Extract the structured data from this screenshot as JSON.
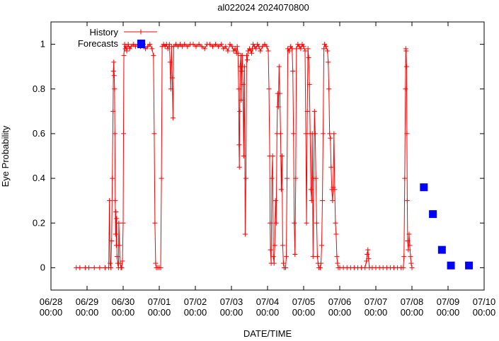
{
  "chart_data": {
    "type": "line",
    "title": "al022024 2024070800",
    "xlabel": "DATE/TIME",
    "ylabel": "Eye Probability",
    "xlim": [
      "06/28 00:00",
      "07/10 00:00"
    ],
    "ylim": [
      -0.1,
      1.1
    ],
    "grid": false,
    "legend_position": "top-left",
    "x_ticks": [
      {
        "line1": "06/28",
        "line2": "00:00",
        "day": 0
      },
      {
        "line1": "06/29",
        "line2": "00:00",
        "day": 1
      },
      {
        "line1": "06/30",
        "line2": "00:00",
        "day": 2
      },
      {
        "line1": "07/01",
        "line2": "00:00",
        "day": 3
      },
      {
        "line1": "07/02",
        "line2": "00:00",
        "day": 4
      },
      {
        "line1": "07/03",
        "line2": "00:00",
        "day": 5
      },
      {
        "line1": "07/04",
        "line2": "00:00",
        "day": 6
      },
      {
        "line1": "07/05",
        "line2": "00:00",
        "day": 7
      },
      {
        "line1": "07/06",
        "line2": "00:00",
        "day": 8
      },
      {
        "line1": "07/07",
        "line2": "00:00",
        "day": 9
      },
      {
        "line1": "07/08",
        "line2": "00:00",
        "day": 10
      },
      {
        "line1": "07/09",
        "line2": "00:00",
        "day": 11
      },
      {
        "line1": "07/10",
        "line2": "00:00",
        "day": 12
      }
    ],
    "y_ticks": [
      {
        "label": "0",
        "value": 0
      },
      {
        "label": "0.2",
        "value": 0.2
      },
      {
        "label": "0.4",
        "value": 0.4
      },
      {
        "label": "0.6",
        "value": 0.6
      },
      {
        "label": "0.8",
        "value": 0.8
      },
      {
        "label": "1",
        "value": 1
      }
    ],
    "series": [
      {
        "name": "History",
        "color": "#ff0000",
        "style": "line-plus",
        "points": [
          [
            0.7,
            0.0
          ],
          [
            0.8,
            0.0
          ],
          [
            0.95,
            0.0
          ],
          [
            1.05,
            0.0
          ],
          [
            1.2,
            0.0
          ],
          [
            1.35,
            0.0
          ],
          [
            1.5,
            0.0
          ],
          [
            1.6,
            0.0
          ],
          [
            1.62,
            0.3
          ],
          [
            1.64,
            0.02
          ],
          [
            1.66,
            0.0
          ],
          [
            1.68,
            0.12
          ],
          [
            1.7,
            0.4
          ],
          [
            1.72,
            0.7
          ],
          [
            1.73,
            0.88
          ],
          [
            1.74,
            0.92
          ],
          [
            1.75,
            0.86
          ],
          [
            1.76,
            0.8
          ],
          [
            1.77,
            0.6
          ],
          [
            1.78,
            0.3
          ],
          [
            1.79,
            0.15
          ],
          [
            1.8,
            0.25
          ],
          [
            1.81,
            0.1
          ],
          [
            1.82,
            0.22
          ],
          [
            1.83,
            0.05
          ],
          [
            1.85,
            0.02
          ],
          [
            1.87,
            0.0
          ],
          [
            1.88,
            0.2
          ],
          [
            1.9,
            0.1
          ],
          [
            1.92,
            0.02
          ],
          [
            1.94,
            0.0
          ],
          [
            1.96,
            0.0
          ],
          [
            1.98,
            0.03
          ],
          [
            2.0,
            0.2
          ],
          [
            2.01,
            0.6
          ],
          [
            2.02,
            0.95
          ],
          [
            2.04,
            1.0
          ],
          [
            2.06,
            0.98
          ],
          [
            2.08,
            0.99
          ],
          [
            2.1,
            0.97
          ],
          [
            2.14,
            1.0
          ],
          [
            2.18,
            0.98
          ],
          [
            2.22,
            0.99
          ],
          [
            2.28,
            1.0
          ],
          [
            2.34,
            0.99
          ],
          [
            2.4,
            1.0
          ],
          [
            2.48,
            0.99
          ],
          [
            2.56,
            1.0
          ],
          [
            2.62,
            0.98
          ],
          [
            2.68,
            0.99
          ],
          [
            2.74,
            1.0
          ],
          [
            2.8,
            0.98
          ],
          [
            2.84,
            0.95
          ],
          [
            2.86,
            0.6
          ],
          [
            2.88,
            0.2
          ],
          [
            2.9,
            0.02
          ],
          [
            2.92,
            0.0
          ],
          [
            2.96,
            0.0
          ],
          [
            3.0,
            0.0
          ],
          [
            3.04,
            0.0
          ],
          [
            3.06,
            0.4
          ],
          [
            3.08,
            0.99
          ],
          [
            3.12,
            1.0
          ],
          [
            3.16,
            0.99
          ],
          [
            3.2,
            1.0
          ],
          [
            3.24,
            0.98
          ],
          [
            3.28,
            1.0
          ],
          [
            3.3,
            0.92
          ],
          [
            3.32,
            0.8
          ],
          [
            3.34,
            0.99
          ],
          [
            3.36,
            0.85
          ],
          [
            3.38,
            0.67
          ],
          [
            3.4,
            0.99
          ],
          [
            3.46,
            1.0
          ],
          [
            3.52,
            0.99
          ],
          [
            3.58,
            1.0
          ],
          [
            3.64,
            0.99
          ],
          [
            3.7,
            1.0
          ],
          [
            3.78,
            0.99
          ],
          [
            3.86,
            1.0
          ],
          [
            3.94,
            1.0
          ],
          [
            4.02,
            0.99
          ],
          [
            4.1,
            1.0
          ],
          [
            4.18,
            0.99
          ],
          [
            4.26,
            0.98
          ],
          [
            4.32,
            1.0
          ],
          [
            4.4,
            1.0
          ],
          [
            4.48,
            0.99
          ],
          [
            4.56,
            1.0
          ],
          [
            4.64,
            0.99
          ],
          [
            4.72,
            1.0
          ],
          [
            4.78,
            0.98
          ],
          [
            4.84,
            0.99
          ],
          [
            4.9,
            0.97
          ],
          [
            4.96,
            1.0
          ],
          [
            5.02,
            0.99
          ],
          [
            5.06,
            0.97
          ],
          [
            5.1,
            0.98
          ],
          [
            5.14,
            0.96
          ],
          [
            5.16,
            0.99
          ],
          [
            5.18,
            0.96
          ],
          [
            5.2,
            0.8
          ],
          [
            5.21,
            0.55
          ],
          [
            5.22,
            0.45
          ],
          [
            5.23,
            0.7
          ],
          [
            5.24,
            0.9
          ],
          [
            5.26,
            0.95
          ],
          [
            5.27,
            0.75
          ],
          [
            5.28,
            0.88
          ],
          [
            5.3,
            0.95
          ],
          [
            5.32,
            0.82
          ],
          [
            5.34,
            0.5
          ],
          [
            5.36,
            0.9
          ],
          [
            5.38,
            0.15
          ],
          [
            5.4,
            0.4
          ],
          [
            5.42,
            0.95
          ],
          [
            5.44,
            0.93
          ],
          [
            5.46,
            0.97
          ],
          [
            5.5,
            0.98
          ],
          [
            5.54,
            0.97
          ],
          [
            5.56,
            0.96
          ],
          [
            5.58,
            0.98
          ],
          [
            5.6,
            1.0
          ],
          [
            5.64,
            0.99
          ],
          [
            5.68,
            0.98
          ],
          [
            5.72,
            1.0
          ],
          [
            5.76,
            0.99
          ],
          [
            5.8,
            0.97
          ],
          [
            5.86,
            0.99
          ],
          [
            5.92,
            1.0
          ],
          [
            5.98,
            0.99
          ],
          [
            6.02,
            0.97
          ],
          [
            6.04,
            0.8
          ],
          [
            6.06,
            0.5
          ],
          [
            6.07,
            0.2
          ],
          [
            6.08,
            0.08
          ],
          [
            6.1,
            0.02
          ],
          [
            6.12,
            0.4
          ],
          [
            6.14,
            0.5
          ],
          [
            6.16,
            0.05
          ],
          [
            6.18,
            0.02
          ],
          [
            6.2,
            0.1
          ],
          [
            6.22,
            0.3
          ],
          [
            6.24,
            0.2
          ],
          [
            6.26,
            0.6
          ],
          [
            6.28,
            0.78
          ],
          [
            6.3,
            0.72
          ],
          [
            6.32,
            0.9
          ],
          [
            6.34,
            0.78
          ],
          [
            6.36,
            0.6
          ],
          [
            6.38,
            0.35
          ],
          [
            6.4,
            0.5
          ],
          [
            6.42,
            0.1
          ],
          [
            6.44,
            0.02
          ],
          [
            6.46,
            0.0
          ],
          [
            6.5,
            0.0
          ],
          [
            6.52,
            0.05
          ],
          [
            6.54,
            0.4
          ],
          [
            6.56,
            0.98
          ],
          [
            6.6,
            0.97
          ],
          [
            6.64,
            0.99
          ],
          [
            6.68,
            0.98
          ],
          [
            6.7,
            0.88
          ],
          [
            6.72,
            0.6
          ],
          [
            6.74,
            0.2
          ],
          [
            6.76,
            0.06
          ],
          [
            6.78,
            0.4
          ],
          [
            6.8,
            0.98
          ],
          [
            6.84,
            1.0
          ],
          [
            6.88,
            0.99
          ],
          [
            6.92,
            0.98
          ],
          [
            6.96,
            1.0
          ],
          [
            7.0,
            0.99
          ],
          [
            7.04,
            0.97
          ],
          [
            7.06,
            0.6
          ],
          [
            7.08,
            0.2
          ],
          [
            7.1,
            0.7
          ],
          [
            7.12,
            0.98
          ],
          [
            7.14,
            0.94
          ],
          [
            7.16,
            0.82
          ],
          [
            7.18,
            0.6
          ],
          [
            7.2,
            0.35
          ],
          [
            7.22,
            0.3
          ],
          [
            7.24,
            0.6
          ],
          [
            7.26,
            0.05
          ],
          [
            7.28,
            0.4
          ],
          [
            7.3,
            0.7
          ],
          [
            7.32,
            0.6
          ],
          [
            7.34,
            0.4
          ],
          [
            7.36,
            0.2
          ],
          [
            7.38,
            0.05
          ],
          [
            7.4,
            0.02
          ],
          [
            7.42,
            0.0
          ],
          [
            7.46,
            0.0
          ],
          [
            7.48,
            0.02
          ],
          [
            7.5,
            0.1
          ],
          [
            7.52,
            0.3
          ],
          [
            7.54,
            0.6
          ],
          [
            7.56,
            0.98
          ],
          [
            7.58,
            1.0
          ],
          [
            7.62,
            0.99
          ],
          [
            7.66,
            0.97
          ],
          [
            7.68,
            0.92
          ],
          [
            7.7,
            0.8
          ],
          [
            7.72,
            0.6
          ],
          [
            7.74,
            0.58
          ],
          [
            7.76,
            0.45
          ],
          [
            7.78,
            0.35
          ],
          [
            7.8,
            0.3
          ],
          [
            7.82,
            0.36
          ],
          [
            7.84,
            0.6
          ],
          [
            7.86,
            0.35
          ],
          [
            7.88,
            0.2
          ],
          [
            7.9,
            0.15
          ],
          [
            7.92,
            0.05
          ],
          [
            7.94,
            0.02
          ],
          [
            7.96,
            0.0
          ],
          [
            8.0,
            0.0
          ],
          [
            8.1,
            0.0
          ],
          [
            8.2,
            0.0
          ],
          [
            8.3,
            0.0
          ],
          [
            8.4,
            0.0
          ],
          [
            8.5,
            0.0
          ],
          [
            8.6,
            0.0
          ],
          [
            8.7,
            0.0
          ],
          [
            8.74,
            0.03
          ],
          [
            8.76,
            0.06
          ],
          [
            8.78,
            0.08
          ],
          [
            8.8,
            0.04
          ],
          [
            8.82,
            0.0
          ],
          [
            8.9,
            0.0
          ],
          [
            9.0,
            0.0
          ],
          [
            9.1,
            0.0
          ],
          [
            9.2,
            0.0
          ],
          [
            9.3,
            0.0
          ],
          [
            9.4,
            0.0
          ],
          [
            9.5,
            0.0
          ],
          [
            9.6,
            0.0
          ],
          [
            9.7,
            0.0
          ],
          [
            9.76,
            0.0
          ],
          [
            9.78,
            0.05
          ],
          [
            9.8,
            0.4
          ],
          [
            9.82,
            0.8
          ],
          [
            9.83,
            0.98
          ],
          [
            9.84,
            0.97
          ],
          [
            9.85,
            0.9
          ],
          [
            9.86,
            0.6
          ],
          [
            9.87,
            0.3
          ],
          [
            9.88,
            0.12
          ],
          [
            9.9,
            0.08
          ],
          [
            9.92,
            0.15
          ],
          [
            9.94,
            0.1
          ],
          [
            9.96,
            0.05
          ],
          [
            9.98,
            0.02
          ],
          [
            10.0,
            0.0
          ]
        ]
      },
      {
        "name": "Forecasts",
        "color": "#0000ff",
        "style": "square",
        "points": [
          [
            2.5,
            1.0
          ],
          [
            10.33,
            0.36
          ],
          [
            10.58,
            0.24
          ],
          [
            10.83,
            0.08
          ],
          [
            11.08,
            0.01
          ],
          [
            11.58,
            0.01
          ]
        ]
      }
    ]
  }
}
